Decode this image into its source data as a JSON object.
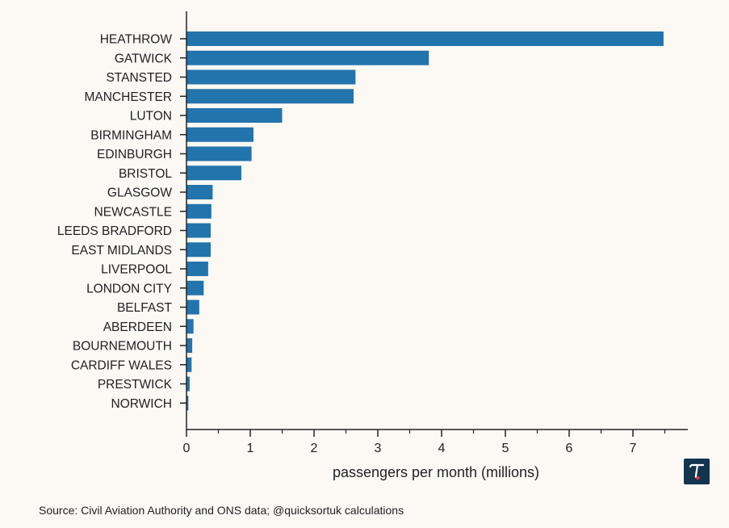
{
  "chart_data": {
    "type": "bar",
    "orientation": "horizontal",
    "categories": [
      "HEATHROW",
      "GATWICK",
      "STANSTED",
      "MANCHESTER",
      "LUTON",
      "BIRMINGHAM",
      "EDINBURGH",
      "BRISTOL",
      "GLASGOW",
      "NEWCASTLE",
      "LEEDS BRADFORD",
      "EAST MIDLANDS",
      "LIVERPOOL",
      "LONDON CITY",
      "BELFAST",
      "ABERDEEN",
      "BOURNEMOUTH",
      "CARDIFF WALES",
      "PRESTWICK",
      "NORWICH"
    ],
    "values": [
      7.48,
      3.8,
      2.65,
      2.62,
      1.5,
      1.05,
      1.02,
      0.86,
      0.41,
      0.39,
      0.38,
      0.38,
      0.34,
      0.27,
      0.2,
      0.11,
      0.09,
      0.08,
      0.05,
      0.03
    ],
    "xlim": [
      0,
      7.8
    ],
    "xticks": [
      "0",
      "1",
      "2",
      "3",
      "4",
      "5",
      "6",
      "7"
    ],
    "xlabel": "passengers per month (millions)",
    "ylabel": "",
    "grid": false,
    "bar_color": "#2274ad"
  },
  "source_text": "Source: Civil Aviation Authority and ONS data; @quicksortuk calculations",
  "logo": {
    "icon": "quicksort-logo-icon",
    "background": "#14344f",
    "accent": "#e0303a"
  }
}
